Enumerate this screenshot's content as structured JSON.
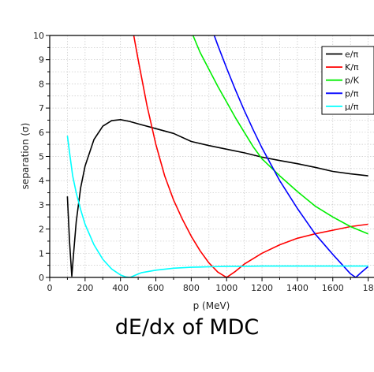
{
  "caption": "dE/dx of MDC",
  "chart_data": {
    "type": "line",
    "xlabel": "p (MeV)",
    "ylabel": "separation (σ)",
    "xlim": [
      0,
      1800
    ],
    "ylim": [
      0,
      10
    ],
    "x_ticks": [
      "0",
      "200",
      "400",
      "600",
      "800",
      "1000",
      "1200",
      "1400",
      "1600",
      "18"
    ],
    "y_ticks": [
      "0",
      "1",
      "2",
      "3",
      "4",
      "5",
      "6",
      "7",
      "8",
      "9",
      "10"
    ],
    "grid": true,
    "legend_position": "top-right",
    "series": [
      {
        "name": "e/π",
        "color": "#000000",
        "x": [
          100,
          112,
          125,
          135,
          150,
          175,
          200,
          250,
          300,
          350,
          400,
          450,
          500,
          600,
          700,
          800,
          900,
          1000,
          1100,
          1200,
          1300,
          1400,
          1500,
          1600,
          1700,
          1800
        ],
        "y": [
          3.35,
          1.5,
          0.05,
          1.0,
          2.3,
          3.7,
          4.6,
          5.7,
          6.25,
          6.48,
          6.52,
          6.45,
          6.35,
          6.15,
          5.95,
          5.62,
          5.45,
          5.3,
          5.15,
          4.97,
          4.83,
          4.7,
          4.55,
          4.38,
          4.28,
          4.2
        ]
      },
      {
        "name": "K/π",
        "color": "#ff0000",
        "x": [
          470,
          500,
          550,
          600,
          650,
          700,
          750,
          800,
          850,
          900,
          950,
          1000,
          1050,
          1100,
          1200,
          1300,
          1400,
          1500,
          1600,
          1700,
          1800
        ],
        "y": [
          10.2,
          9.0,
          7.1,
          5.5,
          4.2,
          3.2,
          2.4,
          1.7,
          1.1,
          0.6,
          0.22,
          0.0,
          0.25,
          0.55,
          1.0,
          1.35,
          1.62,
          1.8,
          1.95,
          2.1,
          2.2
        ]
      },
      {
        "name": "p/K",
        "color": "#00ee00",
        "x": [
          810,
          850,
          900,
          950,
          1000,
          1050,
          1100,
          1150,
          1200,
          1300,
          1400,
          1500,
          1600,
          1700,
          1800
        ],
        "y": [
          10.0,
          9.3,
          8.6,
          7.9,
          7.25,
          6.6,
          6.0,
          5.4,
          4.9,
          4.2,
          3.55,
          2.95,
          2.5,
          2.1,
          1.8
        ]
      },
      {
        "name": "p/π",
        "color": "#0000ff",
        "x": [
          930,
          950,
          1000,
          1050,
          1100,
          1150,
          1200,
          1300,
          1400,
          1500,
          1600,
          1650,
          1700,
          1730,
          1760,
          1800
        ],
        "y": [
          10.0,
          9.6,
          8.65,
          7.75,
          6.9,
          6.1,
          5.35,
          4.0,
          2.85,
          1.8,
          0.95,
          0.55,
          0.15,
          0.0,
          0.2,
          0.45
        ]
      },
      {
        "name": "μ/π",
        "color": "#00ffff",
        "x": [
          100,
          115,
          130,
          150,
          175,
          200,
          250,
          300,
          350,
          400,
          430,
          455,
          480,
          520,
          600,
          700,
          800,
          900,
          1000,
          1100,
          1200,
          1300,
          1400,
          1500,
          1600,
          1700,
          1800
        ],
        "y": [
          5.85,
          5.0,
          4.2,
          3.5,
          2.8,
          2.2,
          1.35,
          0.75,
          0.35,
          0.1,
          0.02,
          0.0,
          0.08,
          0.2,
          0.3,
          0.38,
          0.42,
          0.44,
          0.46,
          0.46,
          0.47,
          0.47,
          0.47,
          0.47,
          0.47,
          0.47,
          0.47
        ]
      }
    ]
  }
}
